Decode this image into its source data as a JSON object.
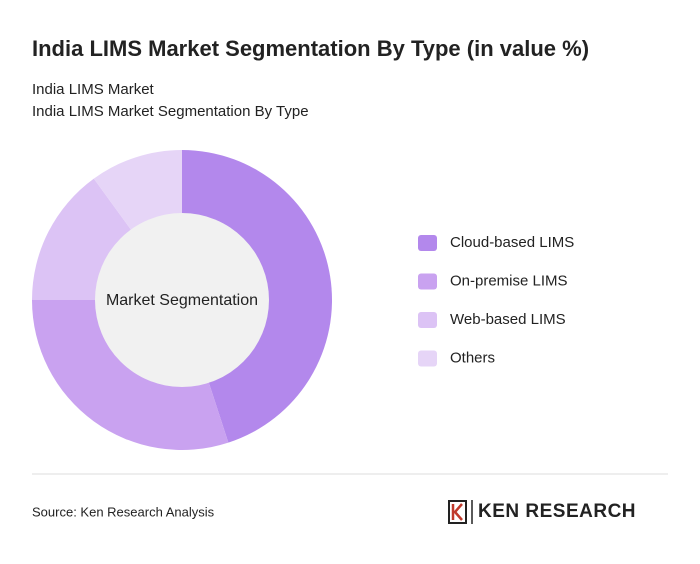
{
  "chart_data": {
    "type": "donut",
    "title": "India LIMS Market Segmentation By Type (in value %)",
    "subtitle": [
      "India LIMS Market",
      "India LIMS Market Segmentation By Type"
    ],
    "center_label": "Market Segmentation",
    "categories": [
      "Cloud-based LIMS",
      "On-premise LIMS",
      "Web-based LIMS",
      "Others"
    ],
    "values": [
      45,
      30,
      15,
      10
    ],
    "colors": [
      "#b388ec",
      "#c9a2f0",
      "#dcc3f5",
      "#e6d5f7"
    ],
    "source": "Source: Ken Research Analysis",
    "logo": "KEN RESEARCH"
  }
}
